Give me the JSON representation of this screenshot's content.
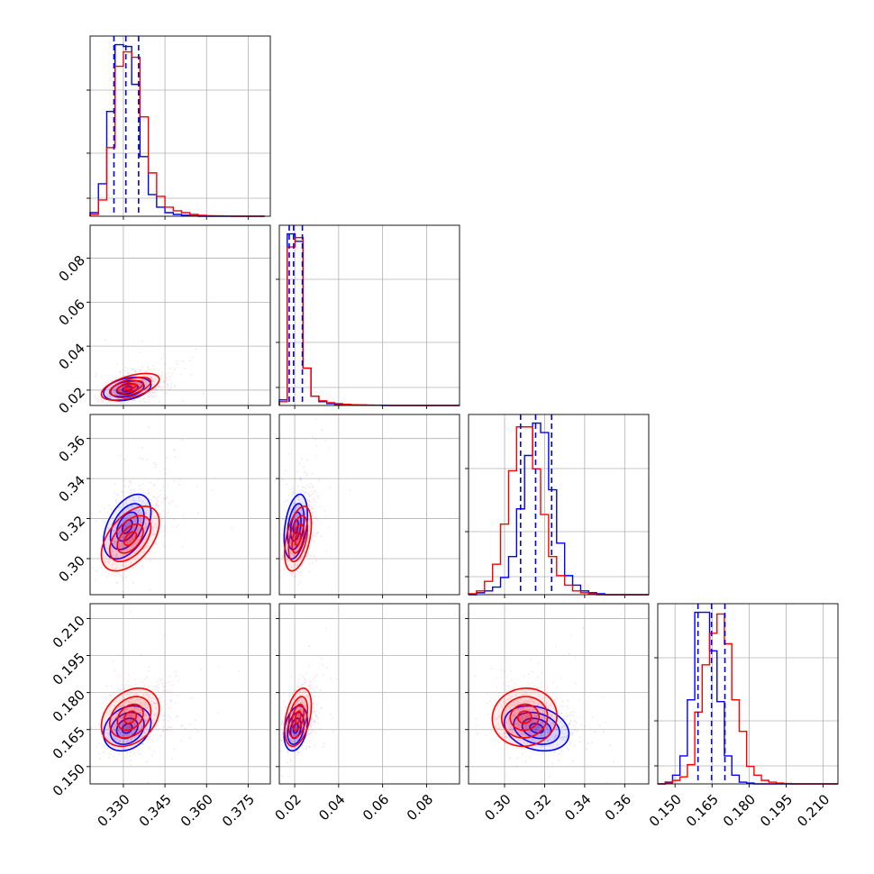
{
  "chart_data": {
    "type": "corner",
    "grid": true,
    "legend": "none",
    "series": [
      {
        "name": "",
        "color": "#0000ff"
      },
      {
        "name": "",
        "color": "#ff0000"
      }
    ],
    "quantile_line_color": "#0000ff",
    "params": [
      {
        "range": [
          0.318,
          0.383
        ],
        "ticks": [
          0.33,
          0.345,
          0.36,
          0.375
        ],
        "tick_labels": [
          "0.330",
          "0.345",
          "0.360",
          "0.375"
        ],
        "quantiles": [
          0.3266,
          0.3309,
          0.3355
        ],
        "hist_bins": [
          0.318,
          0.321,
          0.324,
          0.327,
          0.33,
          0.333,
          0.336,
          0.339,
          0.342,
          0.345,
          0.348,
          0.351,
          0.354,
          0.357,
          0.36,
          0.363,
          0.366,
          0.369,
          0.372,
          0.375,
          0.378,
          0.381
        ],
        "hist_blue": [
          0.02,
          0.18,
          0.58,
          0.95,
          0.94,
          0.73,
          0.33,
          0.12,
          0.05,
          0.02,
          0.01,
          0.005,
          0.003,
          0,
          0,
          0,
          0,
          0,
          0,
          0,
          0
        ],
        "hist_red": [
          0.01,
          0.09,
          0.38,
          0.83,
          0.91,
          0.88,
          0.55,
          0.24,
          0.11,
          0.05,
          0.03,
          0.02,
          0.01,
          0.005,
          0.003,
          0.002,
          0.001,
          0,
          0,
          0,
          0
        ],
        "blue": {
          "mean": 0.3314,
          "sd": 0.0045
        },
        "red": {
          "mean": 0.3325,
          "sd": 0.0055
        }
      },
      {
        "range": [
          0.013,
          0.095
        ],
        "ticks": [
          0.02,
          0.04,
          0.06,
          0.08
        ],
        "tick_labels": [
          "0.02",
          "0.04",
          "0.06",
          "0.08"
        ],
        "quantiles": [
          0.0175,
          0.0195,
          0.0235
        ],
        "hist_bins": [
          0.013,
          0.0166,
          0.0202,
          0.0238,
          0.0274,
          0.031,
          0.0346,
          0.0382,
          0.0418,
          0.0454,
          0.049,
          0.0526,
          0.0562,
          0.0598,
          0.0634,
          0.067,
          0.0706,
          0.0742,
          0.0778,
          0.0814,
          0.085,
          0.0886,
          0.095
        ],
        "hist_blue": [
          0.03,
          0.92,
          0.88,
          0.2,
          0.05,
          0.02,
          0.01,
          0.006,
          0.004,
          0.003,
          0.002,
          0.001,
          0.001,
          0,
          0,
          0,
          0,
          0,
          0,
          0,
          0,
          0
        ],
        "hist_red": [
          0.02,
          0.85,
          0.9,
          0.2,
          0.05,
          0.025,
          0.015,
          0.01,
          0.006,
          0.004,
          0.003,
          0.002,
          0.001,
          0.001,
          0,
          0,
          0,
          0,
          0,
          0,
          0,
          0
        ],
        "blue": {
          "mean": 0.0205,
          "sd": 0.0028
        },
        "red": {
          "mean": 0.0215,
          "sd": 0.0032
        }
      },
      {
        "range": [
          0.282,
          0.372
        ],
        "ticks": [
          0.3,
          0.32,
          0.34,
          0.36
        ],
        "tick_labels": [
          "0.30",
          "0.32",
          "0.34",
          "0.36"
        ],
        "quantiles": [
          0.308,
          0.3155,
          0.3235
        ],
        "hist_bins": [
          0.282,
          0.286,
          0.29,
          0.294,
          0.298,
          0.302,
          0.306,
          0.31,
          0.314,
          0.318,
          0.322,
          0.326,
          0.33,
          0.334,
          0.338,
          0.342,
          0.346,
          0.35,
          0.354,
          0.358,
          0.362,
          0.366,
          0.372
        ],
        "hist_blue": [
          0,
          0.01,
          0.02,
          0.04,
          0.09,
          0.2,
          0.45,
          0.73,
          0.9,
          0.85,
          0.55,
          0.27,
          0.1,
          0.05,
          0.02,
          0.01,
          0.005,
          0,
          0,
          0,
          0,
          0
        ],
        "hist_red": [
          0.005,
          0.02,
          0.07,
          0.16,
          0.37,
          0.65,
          0.88,
          0.88,
          0.66,
          0.42,
          0.2,
          0.1,
          0.05,
          0.02,
          0.01,
          0.005,
          0,
          0,
          0,
          0,
          0,
          0
        ],
        "blue": {
          "mean": 0.316,
          "sd": 0.0085
        },
        "red": {
          "mean": 0.31,
          "sd": 0.0085
        }
      },
      {
        "range": [
          0.143,
          0.216
        ],
        "ticks": [
          0.15,
          0.165,
          0.18,
          0.195,
          0.21
        ],
        "tick_labels": [
          "0.150",
          "0.165",
          "0.180",
          "0.195",
          "0.210"
        ],
        "quantiles": [
          0.1593,
          0.1648,
          0.1702
        ],
        "hist_bins": [
          0.143,
          0.146,
          0.149,
          0.152,
          0.155,
          0.158,
          0.161,
          0.164,
          0.167,
          0.17,
          0.173,
          0.176,
          0.179,
          0.182,
          0.185,
          0.188,
          0.191,
          0.194,
          0.197,
          0.2,
          0.203,
          0.206,
          0.216
        ],
        "hist_blue": [
          0,
          0.01,
          0.05,
          0.16,
          0.48,
          0.98,
          0.98,
          0.76,
          0.47,
          0.16,
          0.05,
          0.01,
          0.005,
          0,
          0,
          0,
          0,
          0,
          0,
          0,
          0,
          0
        ],
        "hist_red": [
          0,
          0.005,
          0.02,
          0.04,
          0.11,
          0.41,
          0.68,
          0.86,
          0.97,
          0.8,
          0.48,
          0.3,
          0.1,
          0.05,
          0.02,
          0.01,
          0.005,
          0.002,
          0,
          0,
          0,
          0
        ],
        "blue": {
          "mean": 0.1655,
          "sd": 0.0048
        },
        "red": {
          "mean": 0.17,
          "sd": 0.0062
        }
      }
    ],
    "correlations": {
      "1-0": {
        "blue": 0.35,
        "red": 0.55
      },
      "2-0": {
        "blue": 0.45,
        "red": 0.5
      },
      "2-1": {
        "blue": 0.35,
        "red": 0.45
      },
      "3-0": {
        "blue": 0.25,
        "red": 0.3
      },
      "3-1": {
        "blue": 0.3,
        "red": 0.4
      },
      "3-2": {
        "blue": -0.25,
        "red": 0.05
      }
    }
  }
}
